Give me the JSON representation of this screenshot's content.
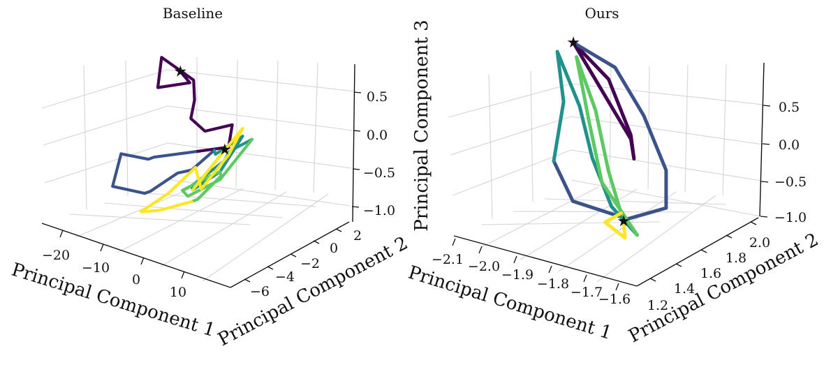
{
  "figure": {
    "panels": [
      "Baseline",
      "Ours"
    ]
  },
  "chart_data": [
    {
      "type": "line",
      "title": "Baseline",
      "xlabel": "Principal Component 1",
      "ylabel": "Principal Component 2",
      "zlabel": "",
      "xticks": [
        "−20",
        "−10",
        "0",
        "10"
      ],
      "yticks": [
        "−6",
        "−4",
        "−2",
        "0",
        "2"
      ],
      "zticks": [
        "0.5",
        "0.0",
        "−0.5",
        "−1.0"
      ],
      "xlim": [
        -22,
        18
      ],
      "ylim": [
        -6.5,
        2.5
      ],
      "zlim": [
        -1.2,
        0.8
      ],
      "colormap": [
        "#440154",
        "#3b528b",
        "#21918c",
        "#5ec962",
        "#fde725"
      ],
      "markers": "star",
      "series": [
        {
          "color": "#440154",
          "points": [
            [
              -8,
              -1,
              0.5
            ],
            [
              -6,
              -1,
              0.4
            ],
            [
              -10,
              -2,
              0.35
            ],
            [
              -12,
              -1,
              0.6
            ],
            [
              -8,
              0,
              0.3
            ],
            [
              -5,
              -1,
              0.2
            ],
            [
              -3,
              -2,
              0.1
            ],
            [
              0,
              -2,
              0.0
            ],
            [
              3,
              -1,
              0.05
            ],
            [
              5,
              -2,
              -0.1
            ],
            [
              -2,
              -2,
              -0.3
            ]
          ]
        },
        {
          "color": "#3b528b",
          "points": [
            [
              -2,
              -2,
              -0.3
            ],
            [
              -8,
              -3,
              -0.4
            ],
            [
              -12,
              -2,
              -0.6
            ],
            [
              -15,
              -3,
              -0.5
            ],
            [
              -14,
              -4,
              -0.8
            ],
            [
              -10,
              -3,
              -0.9
            ],
            [
              -6,
              -4,
              -0.7
            ],
            [
              -3,
              -3,
              -0.5
            ],
            [
              0,
              -3,
              -0.4
            ],
            [
              2,
              -2,
              -0.2
            ]
          ]
        },
        {
          "color": "#21918c",
          "points": [
            [
              2,
              -2,
              -0.2
            ],
            [
              5,
              -3,
              -0.1
            ],
            [
              8,
              -2,
              0.1
            ],
            [
              6,
              -3,
              -0.3
            ],
            [
              3,
              -4,
              -0.5
            ],
            [
              0,
              -3,
              -0.6
            ],
            [
              4,
              -2,
              -0.3
            ],
            [
              8,
              -3,
              0.0
            ],
            [
              10,
              -2,
              0.1
            ]
          ]
        },
        {
          "color": "#5ec962",
          "points": [
            [
              10,
              -2,
              0.1
            ],
            [
              6,
              -3,
              -0.4
            ],
            [
              2,
              -4,
              -0.6
            ],
            [
              -2,
              -3,
              -0.7
            ],
            [
              2,
              -2,
              -0.5
            ],
            [
              6,
              -3,
              -0.3
            ],
            [
              9,
              -4,
              -0.2
            ],
            [
              4,
              -4,
              -0.6
            ],
            [
              0,
              -3,
              -0.8
            ]
          ]
        },
        {
          "color": "#fde725",
          "points": [
            [
              0,
              -3,
              -0.8
            ],
            [
              -4,
              -4,
              -0.9
            ],
            [
              -8,
              -4,
              -1.0
            ],
            [
              -5,
              -3,
              -0.8
            ],
            [
              -2,
              -2,
              -0.5
            ],
            [
              2,
              -3,
              -0.6
            ],
            [
              5,
              -2,
              -0.2
            ],
            [
              8,
              -2,
              0.2
            ],
            [
              6,
              -3,
              -0.1
            ],
            [
              3,
              -4,
              -0.5
            ],
            [
              7,
              -3,
              0.0
            ]
          ]
        }
      ]
    },
    {
      "type": "line",
      "title": "Ours",
      "xlabel": "Principal Component 1",
      "ylabel": "Principal Component 2",
      "zlabel": "Principal Component 3",
      "xticks": [
        "−2.1",
        "−2.0",
        "−1.9",
        "−1.8",
        "−1.7",
        "−1.6"
      ],
      "yticks": [
        "1.2",
        "1.4",
        "1.6",
        "1.8",
        "2.0"
      ],
      "zticks": [
        "0.5",
        "0.0",
        "−0.5",
        "−1.0"
      ],
      "xlim": [
        -2.12,
        -1.55
      ],
      "ylim": [
        1.15,
        2.1
      ],
      "zlim": [
        -1.1,
        0.8
      ],
      "colormap": [
        "#440154",
        "#3b528b",
        "#21918c",
        "#5ec962",
        "#fde725"
      ],
      "markers": "star",
      "series": [
        {
          "color": "#440154",
          "points": [
            [
              -2.05,
              1.9,
              0.7
            ],
            [
              -1.95,
              1.8,
              0.5
            ],
            [
              -1.85,
              1.7,
              0.3
            ],
            [
              -1.75,
              1.6,
              0.1
            ],
            [
              -1.7,
              1.5,
              0.0
            ],
            [
              -1.75,
              1.6,
              0.15
            ],
            [
              -1.9,
              1.8,
              0.5
            ],
            [
              -2.05,
              1.9,
              0.7
            ]
          ]
        },
        {
          "color": "#3b528b",
          "points": [
            [
              -2.05,
              1.9,
              0.7
            ],
            [
              -1.9,
              1.85,
              0.6
            ],
            [
              -1.75,
              1.7,
              0.3
            ],
            [
              -1.62,
              1.55,
              -0.1
            ],
            [
              -1.6,
              1.5,
              -0.5
            ],
            [
              -1.7,
              1.45,
              -0.7
            ],
            [
              -1.85,
              1.4,
              -0.6
            ],
            [
              -1.95,
              1.5,
              -0.3
            ]
          ]
        },
        {
          "color": "#21918c",
          "points": [
            [
              -1.95,
              1.5,
              -0.3
            ],
            [
              -2.0,
              1.7,
              0.2
            ],
            [
              -2.08,
              1.85,
              0.6
            ],
            [
              -1.95,
              1.7,
              0.2
            ],
            [
              -1.85,
              1.55,
              -0.2
            ],
            [
              -1.75,
              1.45,
              -0.6
            ],
            [
              -1.65,
              1.4,
              -0.8
            ]
          ]
        },
        {
          "color": "#5ec962",
          "points": [
            [
              -1.65,
              1.4,
              -0.8
            ],
            [
              -1.8,
              1.5,
              -0.4
            ],
            [
              -1.9,
              1.65,
              0.1
            ],
            [
              -2.02,
              1.85,
              0.6
            ],
            [
              -1.9,
              1.7,
              0.2
            ],
            [
              -1.8,
              1.55,
              -0.3
            ],
            [
              -1.72,
              1.45,
              -0.65
            ]
          ]
        },
        {
          "color": "#fde725",
          "points": [
            [
              -1.72,
              1.45,
              -0.65
            ],
            [
              -1.75,
              1.4,
              -0.75
            ],
            [
              -1.68,
              1.38,
              -0.85
            ],
            [
              -1.7,
              1.42,
              -0.7
            ]
          ]
        }
      ]
    }
  ]
}
